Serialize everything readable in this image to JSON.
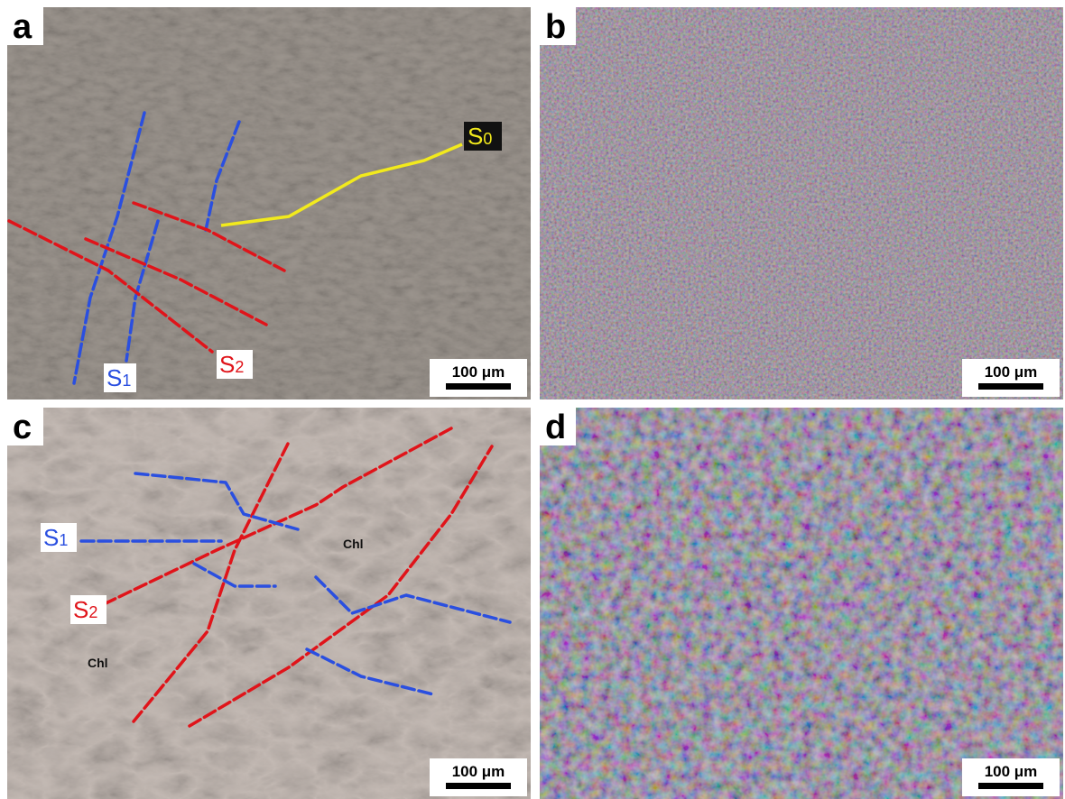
{
  "panels": [
    {
      "label": "a",
      "scale_bar": "100 μm",
      "annotations": [
        {
          "text": "S",
          "sub": "0"
        },
        {
          "text": "S",
          "sub": "1"
        },
        {
          "text": "S",
          "sub": "2"
        }
      ]
    },
    {
      "label": "b",
      "scale_bar": "100 μm"
    },
    {
      "label": "c",
      "scale_bar": "100 μm",
      "annotations": [
        {
          "text": "S",
          "sub": "1"
        },
        {
          "text": "S",
          "sub": "2"
        },
        {
          "text": "Chl"
        },
        {
          "text": "Chl"
        }
      ]
    },
    {
      "label": "d",
      "scale_bar": "100 μm"
    }
  ]
}
